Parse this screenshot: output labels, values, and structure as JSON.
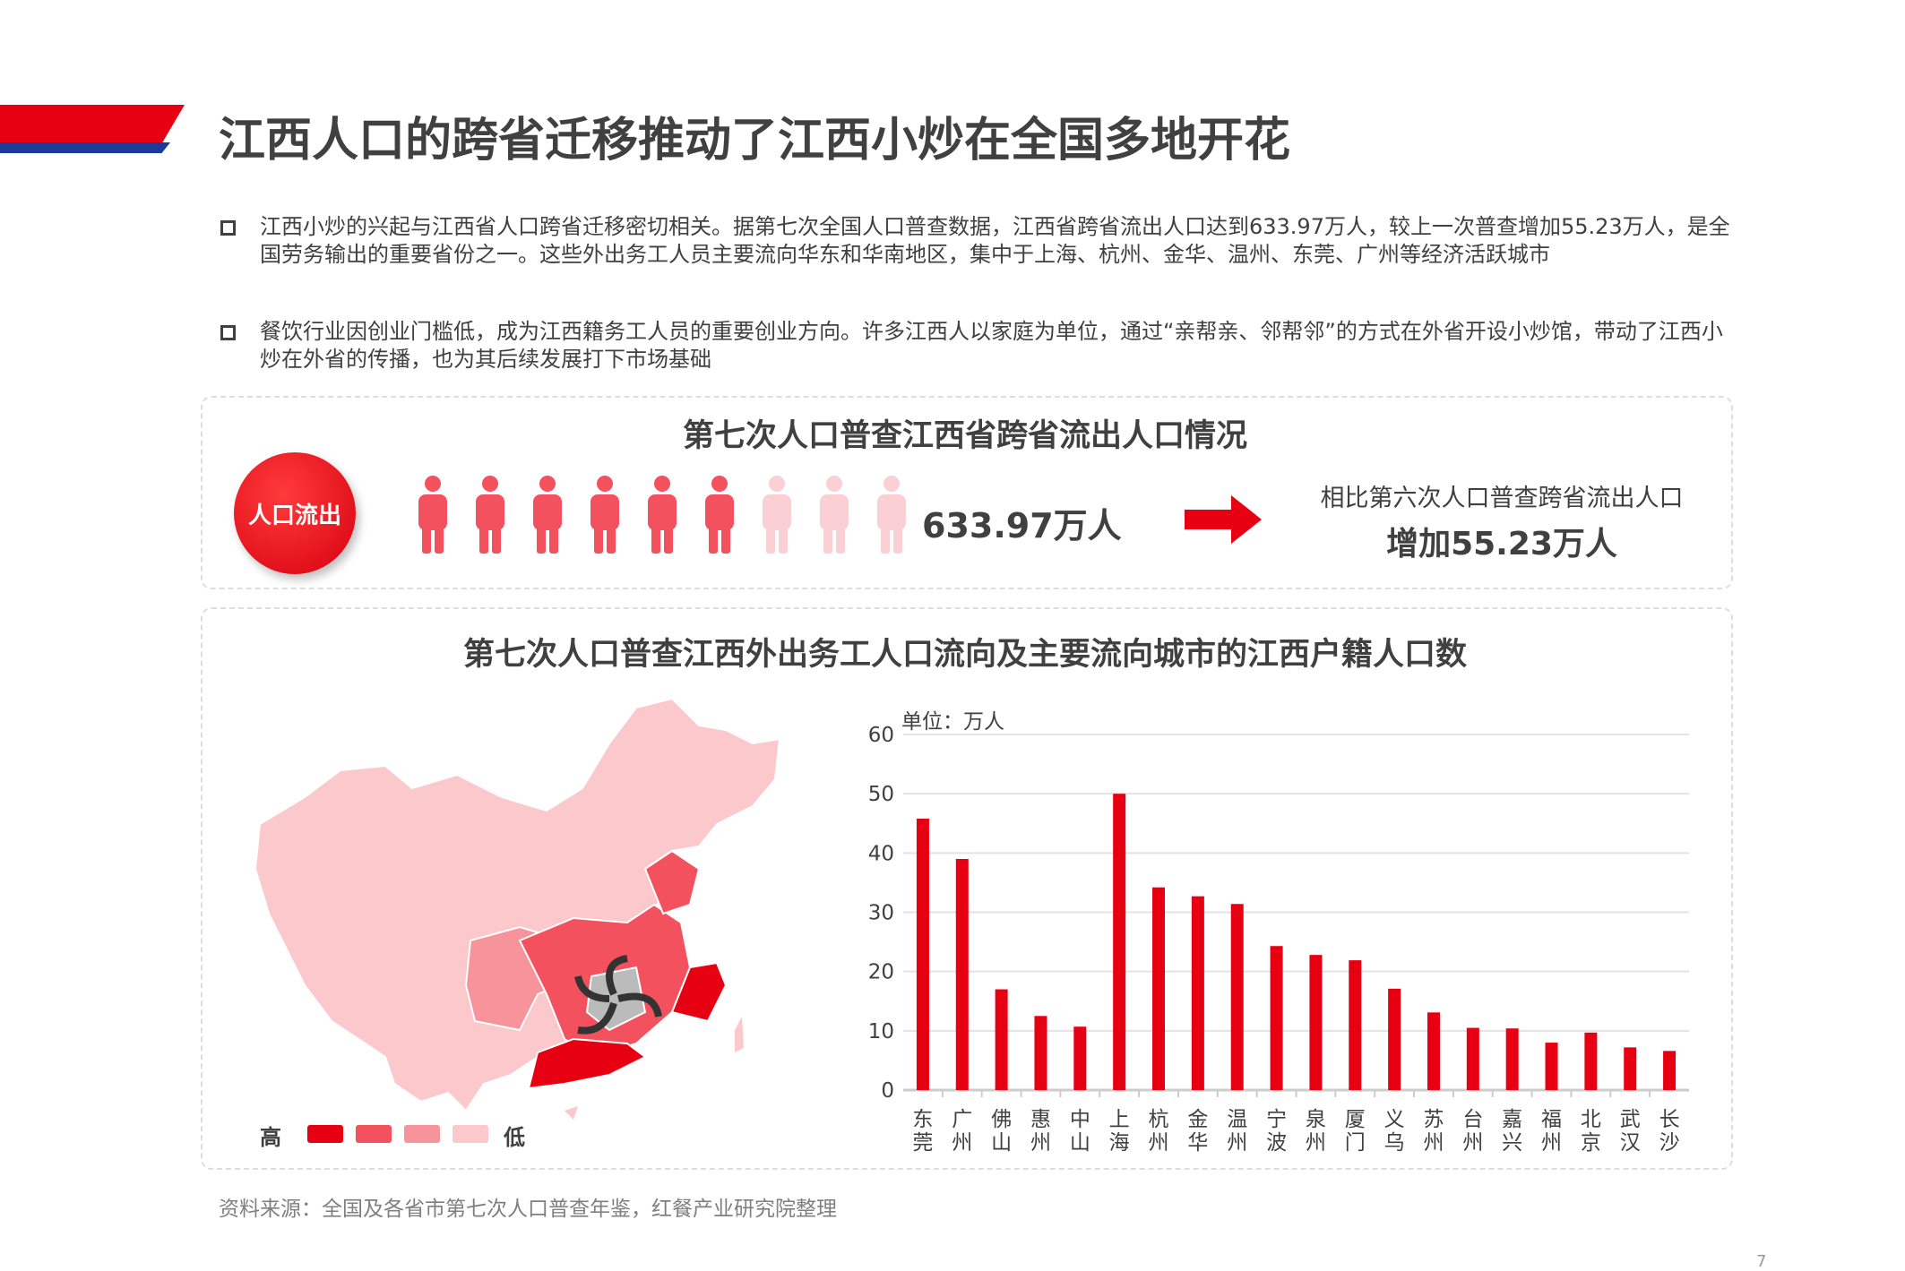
{
  "title": "江西人口的跨省迁移推动了江西小炒在全国多地开花",
  "bullets": [
    "江西小炒的兴起与江西省人口跨省迁移密切相关。据第七次全国人口普查数据，江西省跨省流出人口达到633.97万人，较上一次普查增加55.23万人，是全国劳务输出的重要省份之一。这些外出务工人员主要流向华东和华南地区，集中于上海、杭州、金华、温州、东莞、广州等经济活跃城市",
    "餐饮行业因创业门槛低，成为江西籍务工人员的重要创业方向。许多江西人以家庭为单位，通过“亲帮亲、邻帮邻”的方式在外省开设小炒馆，带动了江西小炒在外省的传播，也为其后续发展打下市场基础"
  ],
  "outflow": {
    "title": "第七次人口普查江西省跨省流出人口情况",
    "badge": "人口流出",
    "value": "633.97万人",
    "people_total": 9,
    "people_highlighted": 6,
    "compare_label": "相比第六次人口普查跨省流出人口",
    "compare_value": "增加55.23万人"
  },
  "destination": {
    "title": "第七次人口普查江西外出务工人口流向及主要流向城市的江西户籍人口数",
    "legend_high": "高",
    "legend_low": "低",
    "legend_colors": [
      "#e60012",
      "#f4515f",
      "#f7939b",
      "#fbc8cc"
    ]
  },
  "chart_data": {
    "type": "bar",
    "unit_label": "单位：万人",
    "categories": [
      "东莞",
      "广州",
      "佛山",
      "惠州",
      "中山",
      "上海",
      "杭州",
      "金华",
      "温州",
      "宁波",
      "泉州",
      "厦门",
      "义乌",
      "苏州",
      "台州",
      "嘉兴",
      "福州",
      "北京",
      "武汉",
      "长沙"
    ],
    "values": [
      45.8,
      39,
      17,
      12.5,
      10.7,
      50,
      34.2,
      32.7,
      31.4,
      24.3,
      22.8,
      21.9,
      17.1,
      13.1,
      10.5,
      10.4,
      8,
      9.7,
      7.2,
      6.6
    ],
    "ylim": [
      0,
      60
    ],
    "yticks": [
      0,
      10,
      20,
      30,
      40,
      50,
      60
    ],
    "grid": true,
    "bar_color": "#e60012"
  },
  "source": "资料来源：全国及各省市第七次人口普查年鉴，红餐产业研究院整理",
  "page_number": "7"
}
